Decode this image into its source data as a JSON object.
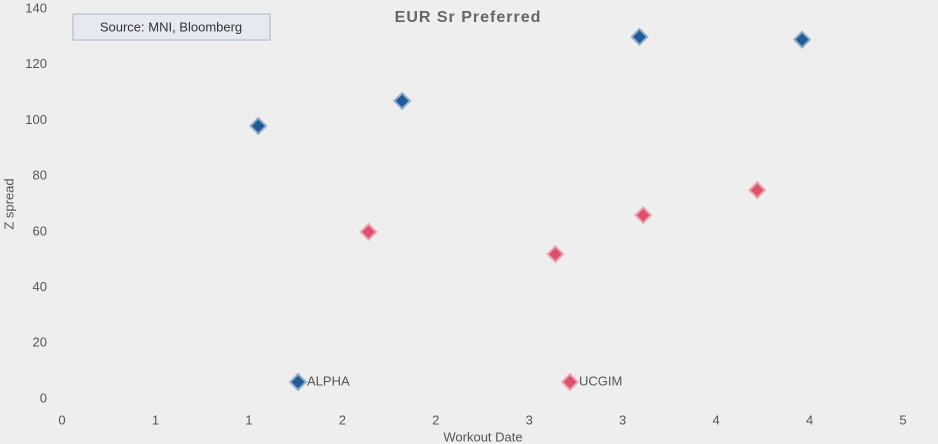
{
  "chart_data": {
    "type": "scatter",
    "title": "EUR Sr Preferred",
    "source": "Source: MNI, Bloomberg",
    "x_label": "Workout Date",
    "y_label": "Z spread",
    "series": [
      {
        "name": "ALPHA",
        "color": "#1f5c99",
        "x": [
          1.05,
          1.82,
          3.09,
          3.96
        ],
        "values": [
          98,
          107,
          130,
          129
        ]
      },
      {
        "name": "UCGIM",
        "color": "#e0506a",
        "x": [
          1.64,
          2.64,
          3.11,
          3.72
        ],
        "values": [
          60,
          52,
          66,
          75
        ]
      }
    ],
    "xlim": [
      0,
      4.5
    ],
    "xticks": [
      0,
      {
        "value": 0.5,
        "label": "1"
      },
      1,
      {
        "value": 1.5,
        "label": "2"
      },
      2,
      {
        "value": 2.5,
        "label": "3"
      },
      3,
      {
        "value": 3.5,
        "label": "4"
      },
      4,
      {
        "value": 4.5,
        "label": "5"
      }
    ],
    "ylim": [
      0,
      140
    ],
    "yticks": [
      0,
      20,
      40,
      60,
      80,
      100,
      120,
      140
    ],
    "legend": "bottom"
  }
}
